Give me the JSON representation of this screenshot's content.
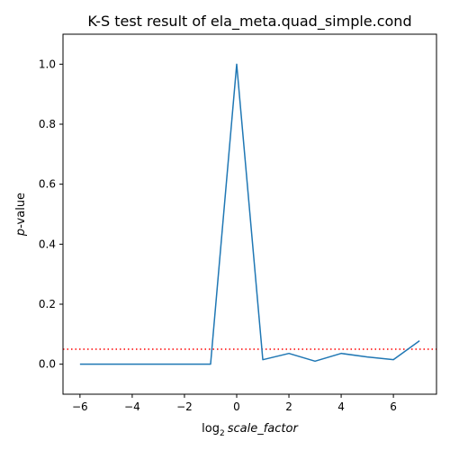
{
  "chart_data": {
    "type": "line",
    "title": "K-S test result of ela_meta.quad_simple.cond",
    "xlabel": {
      "prefix": "log",
      "subscript": "2",
      "italic": "scale_factor"
    },
    "ylabel": {
      "italic": "p",
      "rest": "-value"
    },
    "xlim": [
      -6.65,
      7.65
    ],
    "ylim": [
      -0.1,
      1.1
    ],
    "xticks": [
      -6,
      -4,
      -2,
      0,
      2,
      4,
      6
    ],
    "xtick_labels": [
      "−6",
      "−4",
      "−2",
      "0",
      "2",
      "4",
      "6"
    ],
    "yticks": [
      0.0,
      0.2,
      0.4,
      0.6,
      0.8,
      1.0
    ],
    "ytick_labels": [
      "0.0",
      "0.2",
      "0.4",
      "0.6",
      "0.8",
      "1.0"
    ],
    "grid": false,
    "series": [
      {
        "color": "#1f77b4",
        "x": [
          -6,
          -5,
          -4,
          -3,
          -2,
          -1,
          0,
          1,
          2,
          3,
          4,
          5,
          6,
          7
        ],
        "y": [
          0.0,
          0.0,
          0.0,
          0.0,
          0.0,
          0.0,
          1.0,
          0.015,
          0.036,
          0.01,
          0.036,
          0.024,
          0.015,
          0.078
        ]
      }
    ],
    "reference_line": {
      "y": 0.05,
      "color": "#ff0000",
      "style": "dotted"
    }
  }
}
